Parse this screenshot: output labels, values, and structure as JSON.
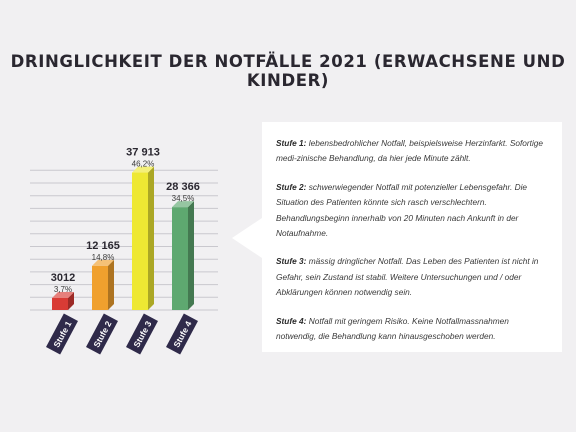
{
  "title": "DRINGLICHKEIT DER NOTFÄLLE 2021 (ERWACHSENE UND KINDER)",
  "chart_data": {
    "type": "bar",
    "categories": [
      "Stufe 1",
      "Stufe 2",
      "Stufe 3",
      "Stufe 4"
    ],
    "values": [
      3012,
      12165,
      37913,
      28366
    ],
    "value_labels": [
      "3012",
      "12 165",
      "37 913",
      "28 366"
    ],
    "percent_labels": [
      "3,7%",
      "14,8%",
      "46,2%",
      "34,5%"
    ],
    "colors": [
      "#d93b35",
      "#f0a02e",
      "#eee833",
      "#5ea870"
    ],
    "ylim": [
      0,
      40000
    ],
    "grid": true,
    "legend": "none"
  },
  "legend_box": {
    "items": [
      {
        "label": "Stufe 1:",
        "text": "lebensbedrohlicher Notfall, beispielsweise Herzinfarkt. Sofortige medi-zinische Behandlung, da hier jede Minute zählt."
      },
      {
        "label": "Stufe 2:",
        "text": "schwerwiegender Notfall mit potenzieller Lebensgefahr. Die Situation des Patienten könnte sich rasch verschlechtern. Behandlungsbeginn innerhalb von 20 Minuten nach Ankunft in der Notaufnahme."
      },
      {
        "label": "Stufe 3:",
        "text": "mässig dringlicher Notfall. Das Leben des Patienten ist nicht in Gefahr, sein Zustand ist stabil. Weitere Untersuchungen und / oder Abklärungen können notwendig sein."
      },
      {
        "label": "Stufe 4:",
        "text": "Notfall mit geringem Risiko. Keine Notfallmassnahmen notwendig, die Behandlung kann hinausgeschoben werden."
      }
    ]
  }
}
